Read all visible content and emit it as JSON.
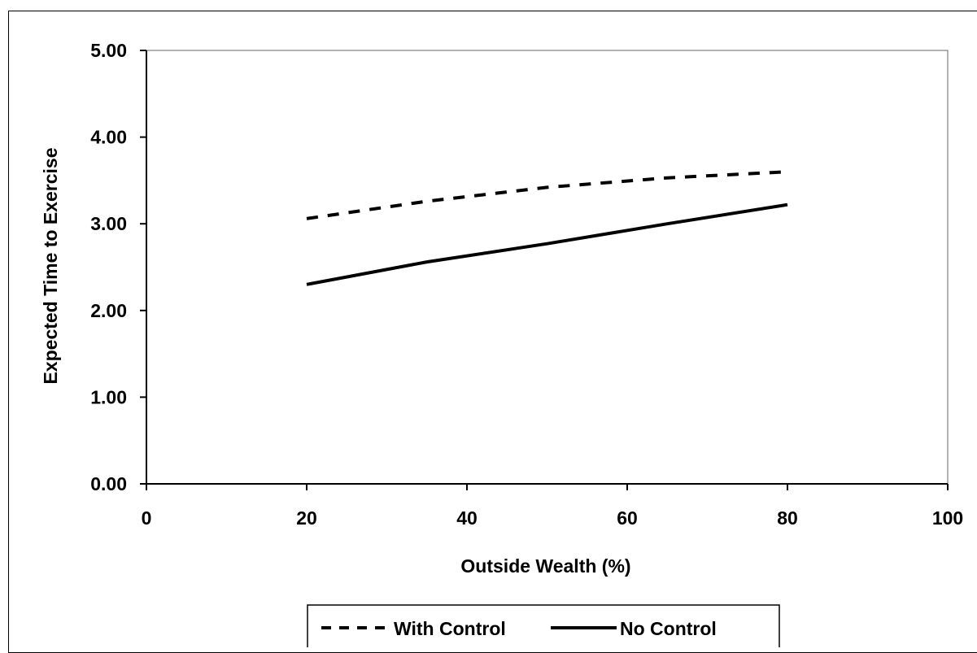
{
  "chart_data": {
    "type": "line",
    "xlabel": "Outside Wealth (%)",
    "ylabel": "Expected Time to Exercise",
    "xlim": [
      0,
      100
    ],
    "ylim": [
      0,
      5
    ],
    "xticks": [
      "0",
      "20",
      "40",
      "60",
      "80",
      "100"
    ],
    "yticks": [
      "0.00",
      "1.00",
      "2.00",
      "3.00",
      "4.00",
      "5.00"
    ],
    "grid": false,
    "legend_position": "bottom",
    "series": [
      {
        "name": "With Control",
        "style": "dashed",
        "color": "#000000",
        "x": [
          20,
          35,
          50,
          65,
          80
        ],
        "y": [
          3.06,
          3.26,
          3.42,
          3.53,
          3.6
        ]
      },
      {
        "name": "No Control",
        "style": "solid",
        "color": "#000000",
        "x": [
          20,
          35,
          50,
          65,
          80
        ],
        "y": [
          2.3,
          2.56,
          2.77,
          3.0,
          3.22
        ]
      }
    ]
  }
}
